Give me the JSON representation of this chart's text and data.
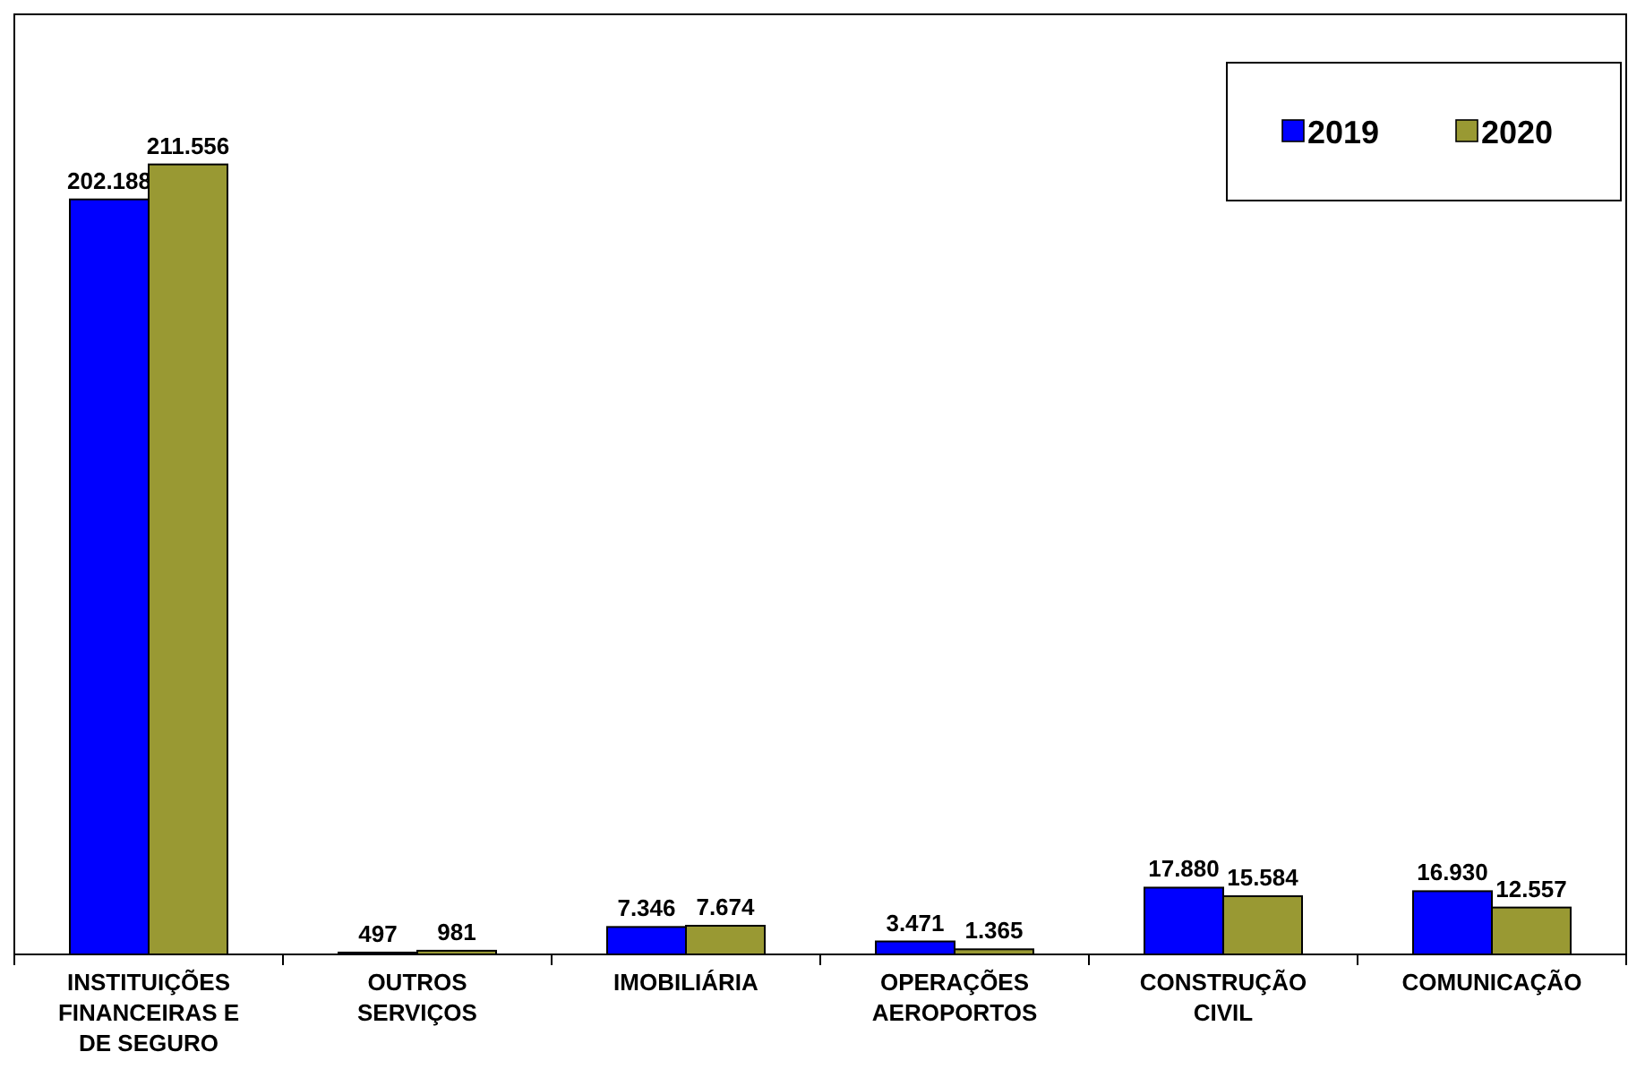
{
  "chart_data": {
    "type": "bar",
    "categories": [
      "INSTITUIÇÕES FINANCEIRAS E DE SEGURO",
      "OUTROS SERVIÇOS",
      "IMOBILIÁRIA",
      "OPERAÇÕES AEROPORTOS",
      "CONSTRUÇÃO CIVIL",
      "COMUNICAÇÃO"
    ],
    "series": [
      {
        "name": "2019",
        "color": "#0000ff",
        "values": [
          202188,
          497,
          7346,
          3471,
          17880,
          16930
        ],
        "value_labels": [
          "202.188",
          "497",
          "7.346",
          "3.471",
          "17.880",
          "16.930"
        ]
      },
      {
        "name": "2020",
        "color": "#999933",
        "values": [
          211556,
          981,
          7674,
          1365,
          15584,
          12557
        ],
        "value_labels": [
          "211.556",
          "981",
          "7.674",
          "1.365",
          "15.584",
          "12.557"
        ]
      }
    ],
    "legend": "top right"
  }
}
